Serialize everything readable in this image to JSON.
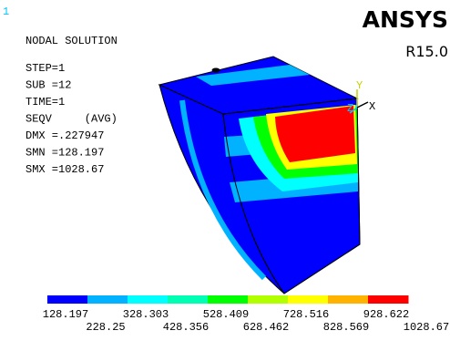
{
  "window_number": "1",
  "header": {
    "title": "NODAL SOLUTION",
    "lines": [
      "STEP=1",
      "SUB =12",
      "TIME=1",
      "SEQV     (AVG)",
      "DMX =.227947",
      "SMN =128.197",
      "SMX =1028.67"
    ]
  },
  "logo": {
    "name": "ANSYS",
    "version": "R15.0"
  },
  "triad": {
    "y_label": "Y",
    "z_label": "Z",
    "x_label": "X"
  },
  "legend": {
    "colors": [
      "#0000ff",
      "#00b2ff",
      "#00ffff",
      "#00ffb2",
      "#00ff00",
      "#b2ff00",
      "#ffff00",
      "#ffb200",
      "#ff0000"
    ],
    "labels": [
      "128.197",
      "228.25",
      "328.303",
      "428.356",
      "528.409",
      "628.462",
      "728.516",
      "828.569",
      "928.622",
      "1028.67"
    ]
  }
}
